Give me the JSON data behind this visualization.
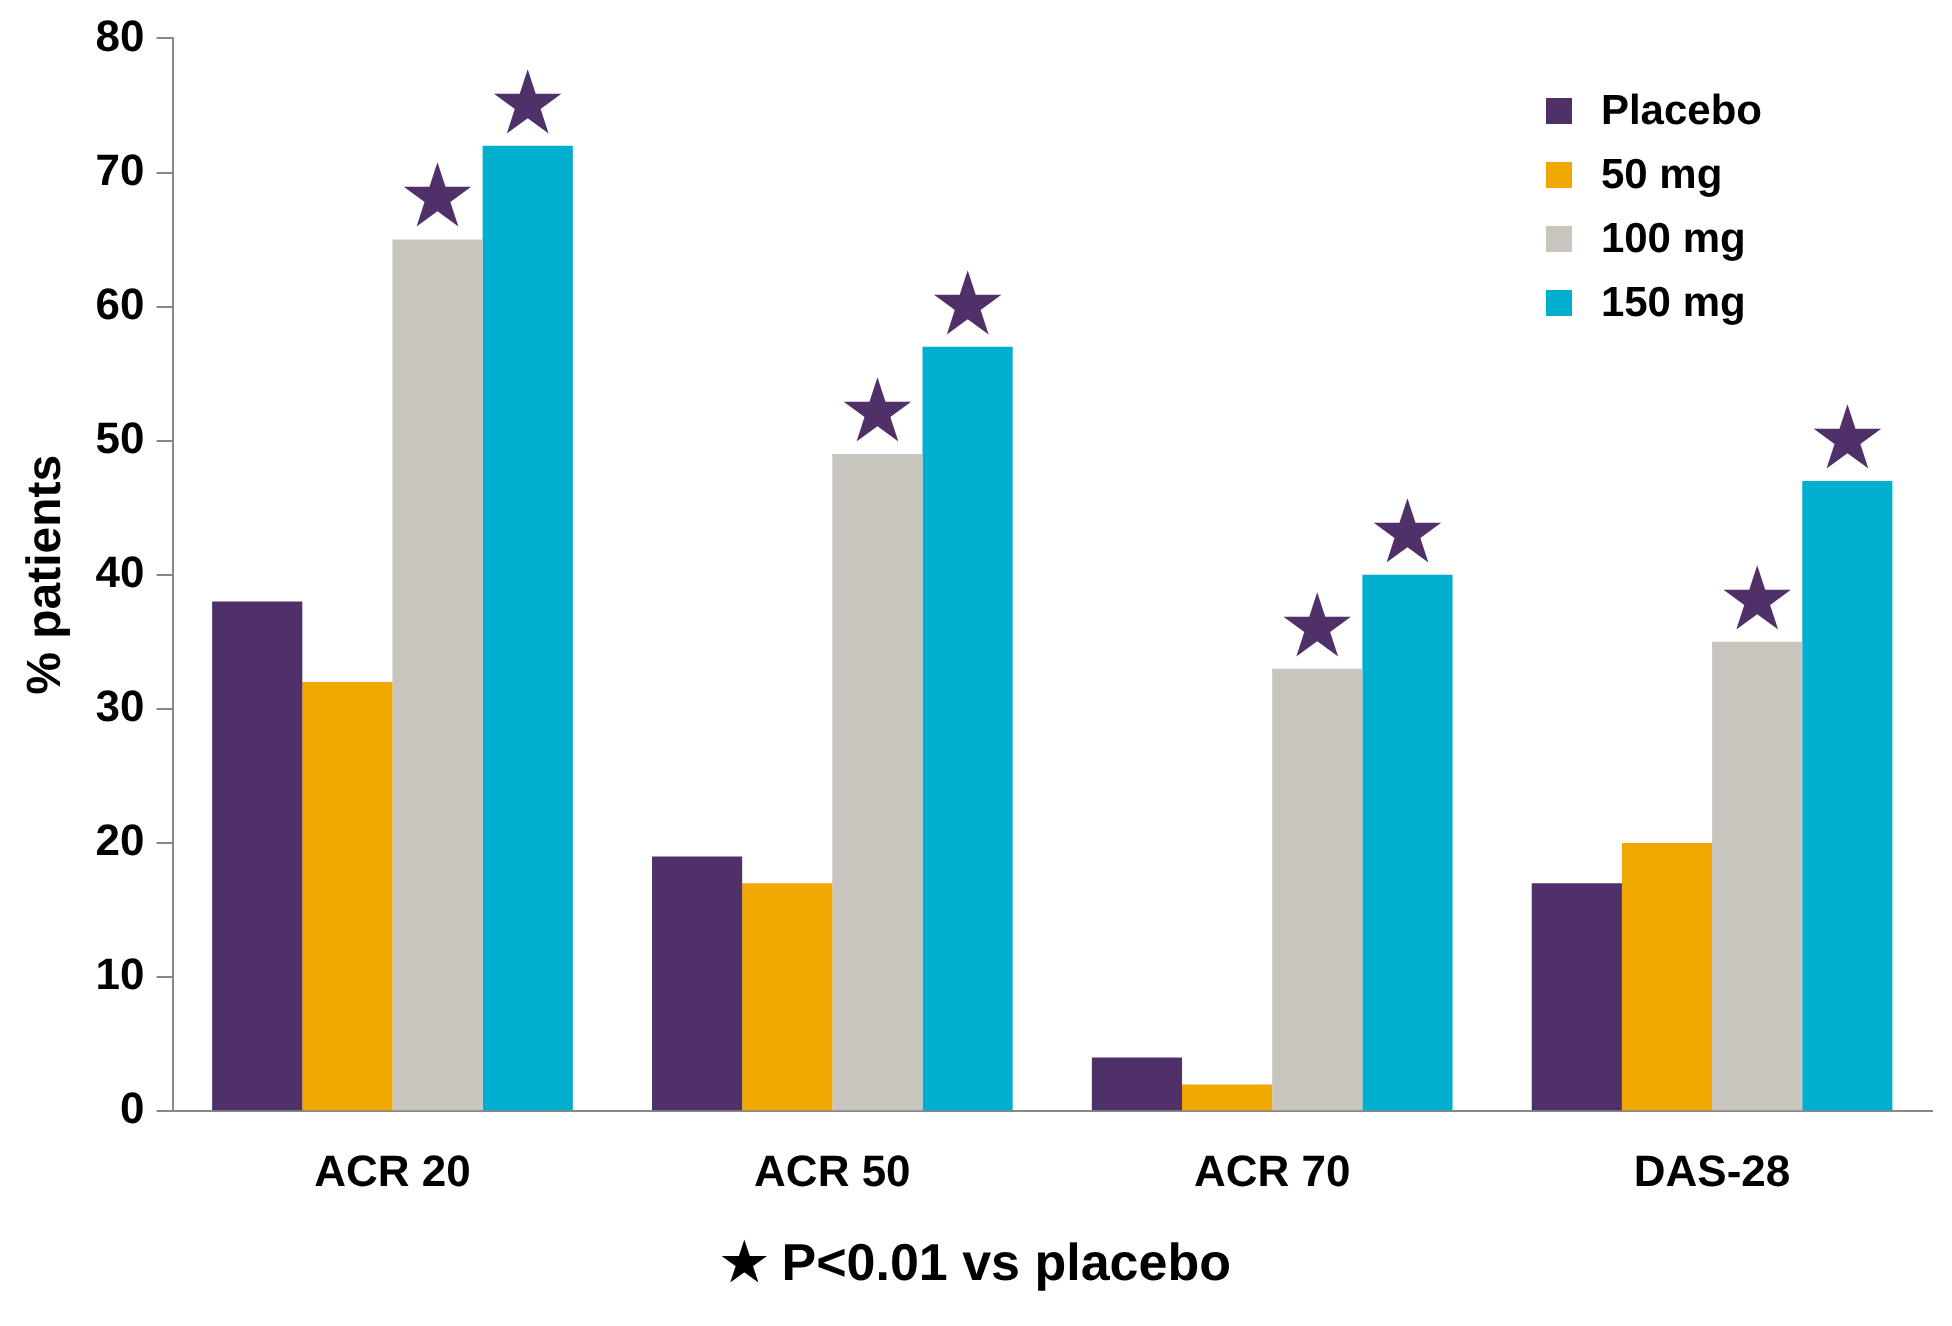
{
  "chart_data": {
    "type": "bar",
    "ylabel": "% patients",
    "categories": [
      "ACR 20",
      "ACR 50",
      "ACR 70",
      "DAS-28"
    ],
    "series": [
      {
        "name": "Placebo",
        "color": "#4f3068",
        "values": [
          38,
          19,
          4,
          17
        ]
      },
      {
        "name": "50 mg",
        "color": "#f0a800",
        "values": [
          32,
          17,
          2,
          20
        ]
      },
      {
        "name": "100 mg",
        "color": "#c8c4be",
        "values": [
          65,
          49,
          33,
          35
        ],
        "value_labels": [
          "★",
          "★",
          "★",
          "★"
        ]
      },
      {
        "name": "150 mg",
        "color": "#00aed0",
        "values": [
          72,
          57,
          40,
          47
        ],
        "value_labels": [
          "★",
          "★",
          "★",
          "★"
        ]
      }
    ],
    "ylim": [
      0,
      80
    ],
    "yticks": [
      0,
      10,
      20,
      30,
      40,
      50,
      60,
      70,
      80
    ],
    "grid": false,
    "legend": "top right",
    "annotations": [
      "★ P<0.01 vs placebo"
    ]
  }
}
